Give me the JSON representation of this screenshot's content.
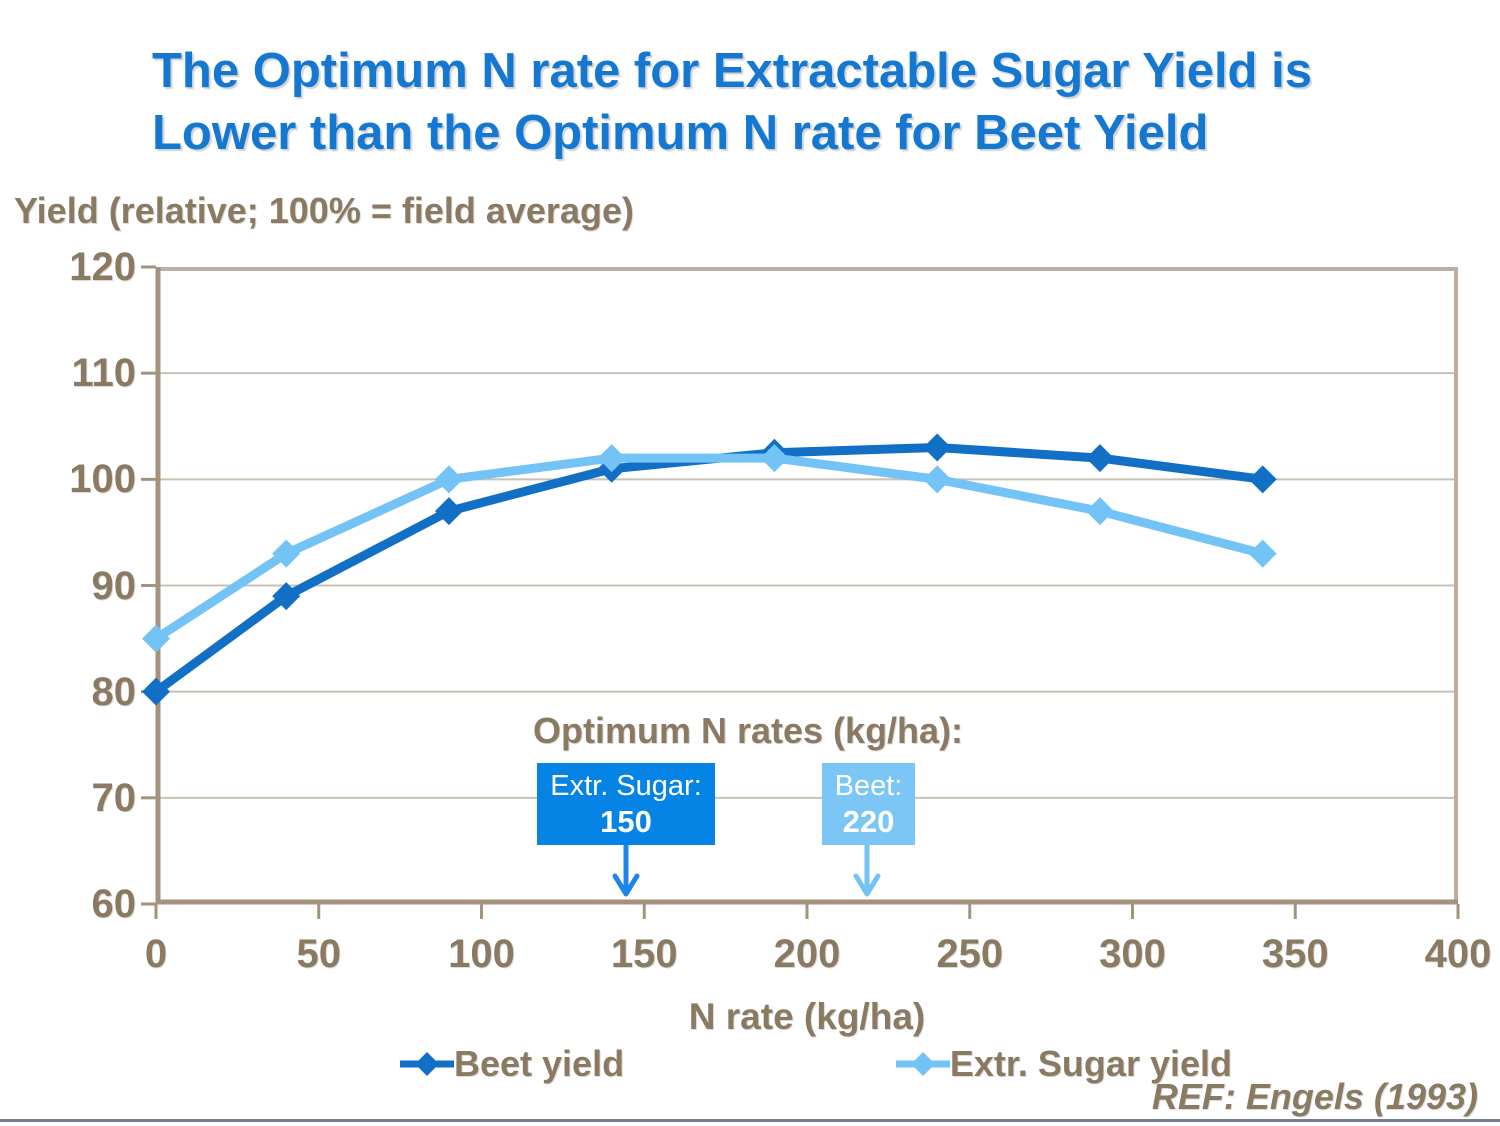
{
  "title": {
    "line1": "The Optimum N rate for Extractable Sugar Yield is",
    "line2": "Lower than the Optimum N rate for Beet Yield"
  },
  "annotation": {
    "header": "Optimum N rates (kg/ha):",
    "boxes": [
      {
        "id": "extr-sugar",
        "label": "Extr. Sugar:",
        "value": "150",
        "box_color": "#0584E6",
        "arrow_color": "#1C87E8"
      },
      {
        "id": "beet",
        "label": "Beet:",
        "value": "220",
        "box_color": "#7CC6F6",
        "arrow_color": "#73C3F6"
      }
    ]
  },
  "ref_note": "REF: Engels (1993)",
  "colors": {
    "title_blue": "#1478D2",
    "label_brown": "#8A7A63",
    "beet_series": "#1170C5",
    "sugar_series": "#73C3F6",
    "gridline": "#C8C1B5",
    "plot_border": "#BEAFA0",
    "axis_line": "#A3937D",
    "bottom_rule": "#75828E",
    "callout_text": "#FFFFFF"
  },
  "chart_data": {
    "type": "line",
    "title": "",
    "xlabel": "N rate (kg/ha)",
    "ylabel": "Yield (relative; 100% = field average)",
    "x": [
      0,
      40,
      90,
      140,
      190,
      240,
      290,
      340
    ],
    "series": [
      {
        "name": "Beet yield",
        "color": "#1170C5",
        "marker": "diamond",
        "values": [
          80,
          89,
          97,
          101,
          102.5,
          103,
          102,
          100
        ]
      },
      {
        "name": "Extr. Sugar yield",
        "color": "#73C3F6",
        "marker": "diamond",
        "values": [
          85,
          93,
          100,
          102,
          102,
          100,
          97,
          93
        ]
      }
    ],
    "xlim": [
      0,
      400
    ],
    "ylim": [
      60,
      120
    ],
    "x_ticks": [
      0,
      50,
      100,
      150,
      200,
      250,
      300,
      350,
      400
    ],
    "y_ticks": [
      60,
      70,
      80,
      90,
      100,
      110,
      120
    ],
    "grid": "horizontal",
    "legend_position": "bottom",
    "annotations": {
      "optimum_extr_sugar_kg_ha": 150,
      "optimum_beet_kg_ha": 220
    }
  }
}
